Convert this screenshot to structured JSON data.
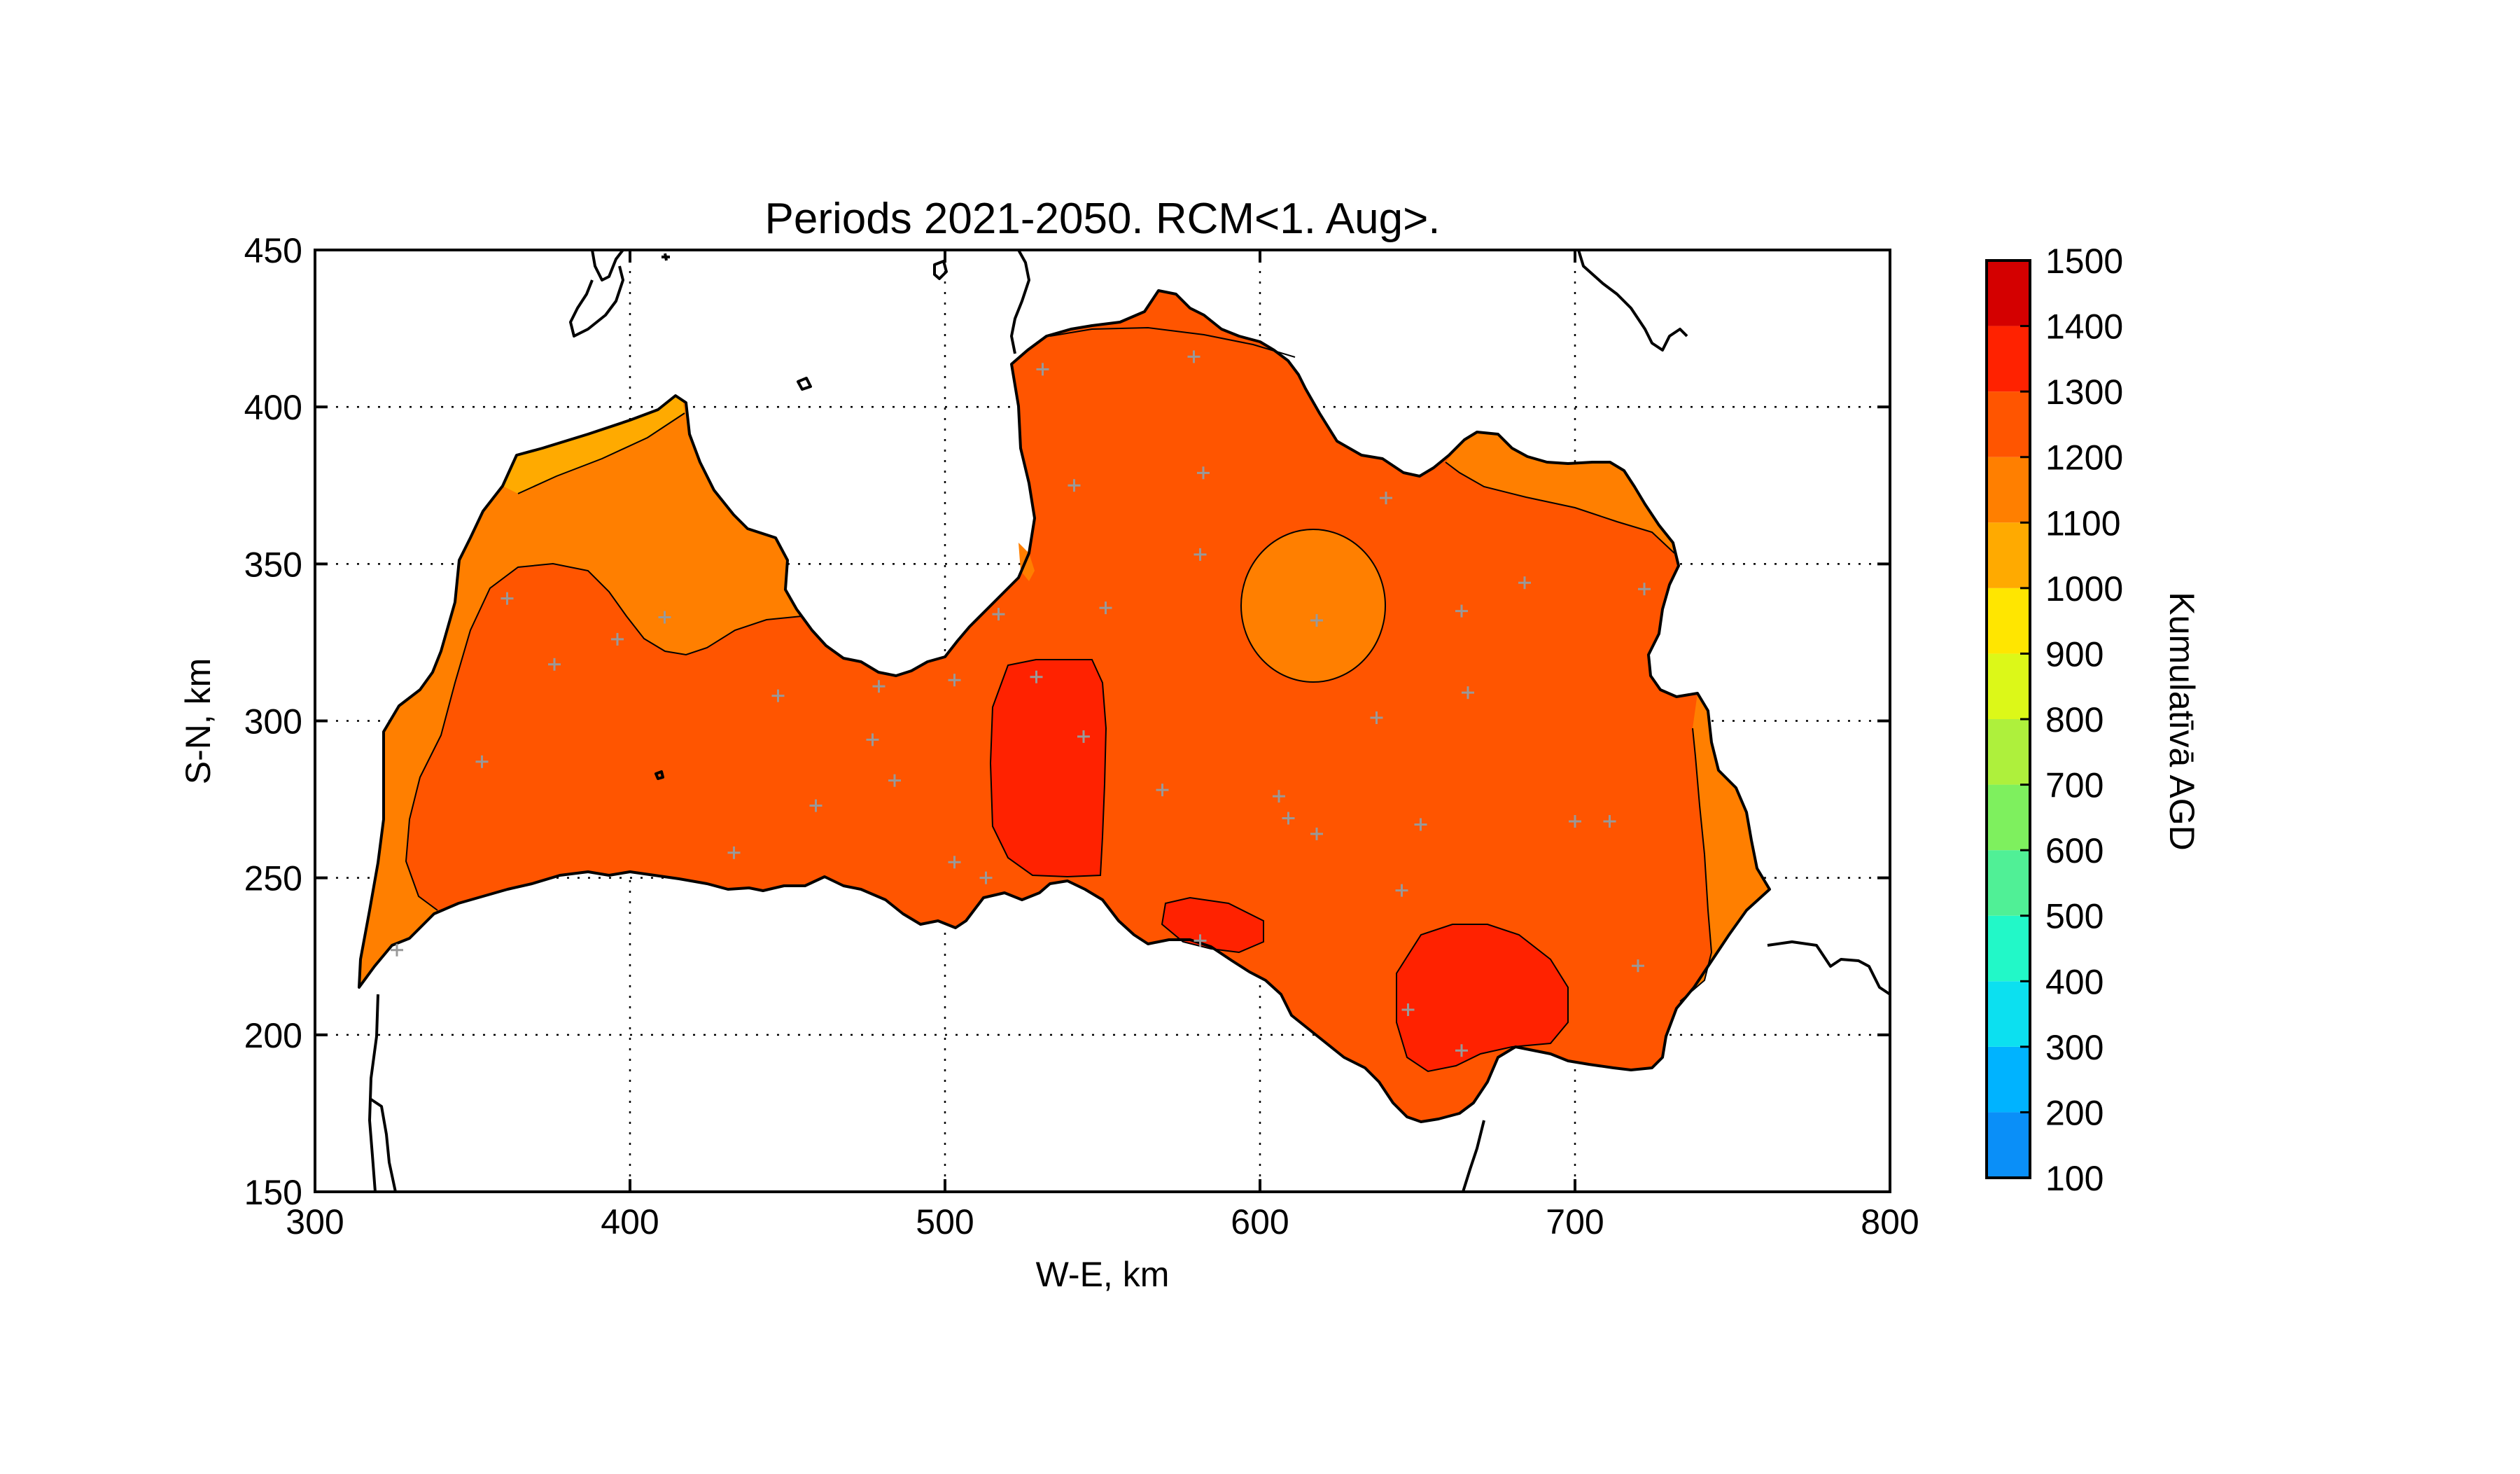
{
  "chart_data": {
    "type": "contour-map",
    "title": "Periods 2021-2050. RCM<1. Aug>.",
    "xlabel": "W-E, km",
    "ylabel": "S-N, km",
    "xlim": [
      300,
      800
    ],
    "ylim": [
      150,
      450
    ],
    "xticks": [
      "300",
      "400",
      "500",
      "600",
      "700",
      "800"
    ],
    "yticks": [
      "150",
      "200",
      "250",
      "300",
      "350",
      "400",
      "450"
    ],
    "grid": true,
    "colorbar": {
      "label": "Kumulatīvā AGD",
      "position": "right",
      "ticks": [
        "100",
        "200",
        "300",
        "400",
        "500",
        "600",
        "700",
        "800",
        "900",
        "1000",
        "1100",
        "1200",
        "1300",
        "1400",
        "1500"
      ],
      "levels": [
        {
          "from": 100,
          "to": 200,
          "color": "#0a8ff8"
        },
        {
          "from": 200,
          "to": 300,
          "color": "#00b3ff"
        },
        {
          "from": 300,
          "to": 400,
          "color": "#0ce0f0"
        },
        {
          "from": 400,
          "to": 500,
          "color": "#22f8c8"
        },
        {
          "from": 500,
          "to": 600,
          "color": "#50f096"
        },
        {
          "from": 600,
          "to": 700,
          "color": "#7ef05e"
        },
        {
          "from": 700,
          "to": 800,
          "color": "#aef03c"
        },
        {
          "from": 800,
          "to": 900,
          "color": "#dcf818"
        },
        {
          "from": 900,
          "to": 1000,
          "color": "#ffe600"
        },
        {
          "from": 1000,
          "to": 1100,
          "color": "#ffaa00"
        },
        {
          "from": 1100,
          "to": 1200,
          "color": "#ff7f00"
        },
        {
          "from": 1200,
          "to": 1300,
          "color": "#ff5500"
        },
        {
          "from": 1300,
          "to": 1400,
          "color": "#ff2200"
        },
        {
          "from": 1400,
          "to": 1500,
          "color": "#d40000"
        }
      ]
    },
    "regions": [
      {
        "level": "1000-1100",
        "color": "#ffaa00"
      },
      {
        "level": "1100-1200",
        "color": "#ff7f00"
      },
      {
        "level": "1200-1300",
        "color": "#ff5500"
      },
      {
        "level": "1300-1400",
        "color": "#ff2200"
      }
    ],
    "stations": [
      [
        361,
        339
      ],
      [
        376,
        318
      ],
      [
        396,
        326
      ],
      [
        411,
        333
      ],
      [
        353,
        287
      ],
      [
        326,
        227
      ],
      [
        433,
        258
      ],
      [
        447,
        308
      ],
      [
        459,
        273
      ],
      [
        477,
        294
      ],
      [
        479,
        311
      ],
      [
        484,
        281
      ],
      [
        503,
        255
      ],
      [
        503,
        313
      ],
      [
        513,
        250
      ],
      [
        517,
        334
      ],
      [
        529,
        314
      ],
      [
        531,
        412
      ],
      [
        541,
        375
      ],
      [
        544,
        295
      ],
      [
        551,
        336
      ],
      [
        569,
        278
      ],
      [
        579,
        416
      ],
      [
        581,
        230
      ],
      [
        581,
        353
      ],
      [
        582,
        379
      ],
      [
        606,
        276
      ],
      [
        609,
        269
      ],
      [
        618,
        264
      ],
      [
        618,
        332
      ],
      [
        637,
        301
      ],
      [
        640,
        371
      ],
      [
        645,
        246
      ],
      [
        647,
        208
      ],
      [
        651,
        267
      ],
      [
        664,
        195
      ],
      [
        664,
        335
      ],
      [
        666,
        309
      ],
      [
        684,
        344
      ],
      [
        700,
        268
      ],
      [
        711,
        268
      ],
      [
        720,
        222
      ],
      [
        722,
        342
      ]
    ]
  }
}
